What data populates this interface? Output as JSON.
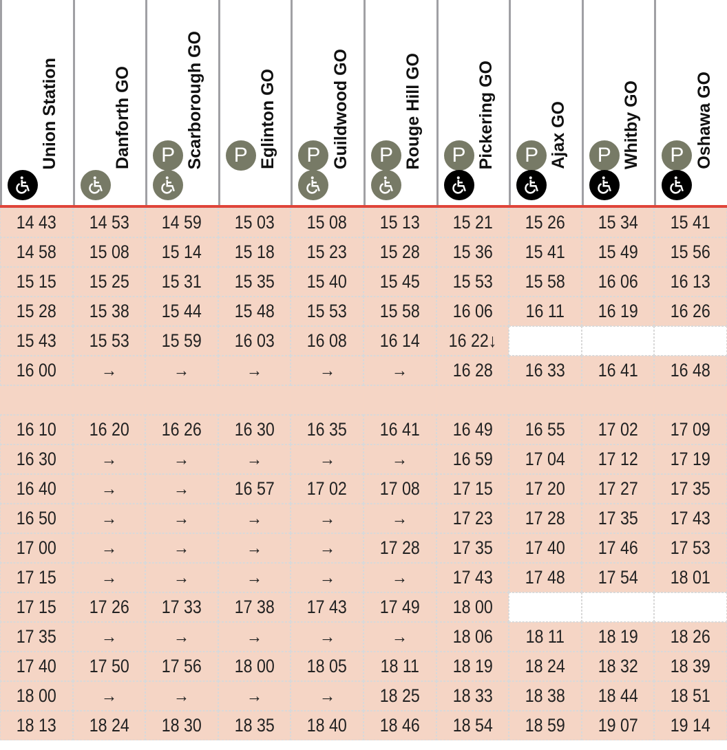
{
  "colors": {
    "cell_bg": "#f5d5c5",
    "rule": "#e0453a",
    "icon_gray": "#777a66",
    "icon_black": "#000000"
  },
  "stations": [
    {
      "name": "Union Station",
      "parking": false,
      "accessible": "black"
    },
    {
      "name": "Danforth GO",
      "parking": false,
      "accessible": "gray"
    },
    {
      "name": "Scarborough GO",
      "parking": true,
      "accessible": "gray"
    },
    {
      "name": "Eglinton GO",
      "parking": true,
      "accessible": null
    },
    {
      "name": "Guildwood GO",
      "parking": true,
      "accessible": "gray"
    },
    {
      "name": "Rouge Hill GO",
      "parking": true,
      "accessible": "gray"
    },
    {
      "name": "Pickering GO",
      "parking": true,
      "accessible": "black"
    },
    {
      "name": "Ajax GO",
      "parking": true,
      "accessible": "black"
    },
    {
      "name": "Whitby GO",
      "parking": true,
      "accessible": "black"
    },
    {
      "name": "Oshawa GO",
      "parking": true,
      "accessible": "black"
    }
  ],
  "icons": {
    "parking": "P",
    "accessible": "♿"
  },
  "rows": [
    [
      "14 43",
      "14 53",
      "14 59",
      "15 03",
      "15 08",
      "15 13",
      "15 21",
      "15 26",
      "15 34",
      "15 41"
    ],
    [
      "14 58",
      "15 08",
      "15 14",
      "15 18",
      "15 23",
      "15 28",
      "15 36",
      "15 41",
      "15 49",
      "15 56"
    ],
    [
      "15 15",
      "15 25",
      "15 31",
      "15 35",
      "15 40",
      "15 45",
      "15 53",
      "15 58",
      "16 06",
      "16 13"
    ],
    [
      "15 28",
      "15 38",
      "15 44",
      "15 48",
      "15 53",
      "15 58",
      "16 06",
      "16 11",
      "16 19",
      "16 26"
    ],
    [
      "15 43",
      "15 53",
      "15 59",
      "16 03",
      "16 08",
      "16 14",
      "16 22↓",
      "",
      "",
      ""
    ],
    [
      "16 00",
      "→",
      "→",
      "→",
      "→",
      "→",
      "16 28",
      "16 33",
      "16 41",
      "16 48"
    ],
    null,
    [
      "16 10",
      "16 20",
      "16 26",
      "16 30",
      "16 35",
      "16 41",
      "16 49",
      "16 55",
      "17 02",
      "17 09"
    ],
    [
      "16 30",
      "→",
      "→",
      "→",
      "→",
      "→",
      "16 59",
      "17 04",
      "17 12",
      "17 19"
    ],
    [
      "16 40",
      "→",
      "→",
      "16 57",
      "17 02",
      "17 08",
      "17 15",
      "17 20",
      "17 27",
      "17 35"
    ],
    [
      "16 50",
      "→",
      "→",
      "→",
      "→",
      "→",
      "17 23",
      "17 28",
      "17 35",
      "17 43"
    ],
    [
      "17 00",
      "→",
      "→",
      "→",
      "→",
      "17 28",
      "17 35",
      "17 40",
      "17 46",
      "17 53"
    ],
    [
      "17 15",
      "→",
      "→",
      "→",
      "→",
      "→",
      "17 43",
      "17 48",
      "17 54",
      "18 01"
    ],
    [
      "17 15",
      "17 26",
      "17 33",
      "17 38",
      "17 43",
      "17 49",
      "18 00",
      "",
      "",
      ""
    ],
    [
      "17 35",
      "→",
      "→",
      "→",
      "→",
      "→",
      "18 06",
      "18 11",
      "18 19",
      "18 26"
    ],
    [
      "17 40",
      "17 50",
      "17 56",
      "18 00",
      "18 05",
      "18 11",
      "18 19",
      "18 24",
      "18 32",
      "18 39"
    ],
    [
      "18 00",
      "→",
      "→",
      "→",
      "→",
      "18 25",
      "18 33",
      "18 38",
      "18 44",
      "18 51"
    ],
    [
      "18 13",
      "18 24",
      "18 30",
      "18 35",
      "18 40",
      "18 46",
      "18 54",
      "18 59",
      "19 07",
      "19 14"
    ]
  ]
}
